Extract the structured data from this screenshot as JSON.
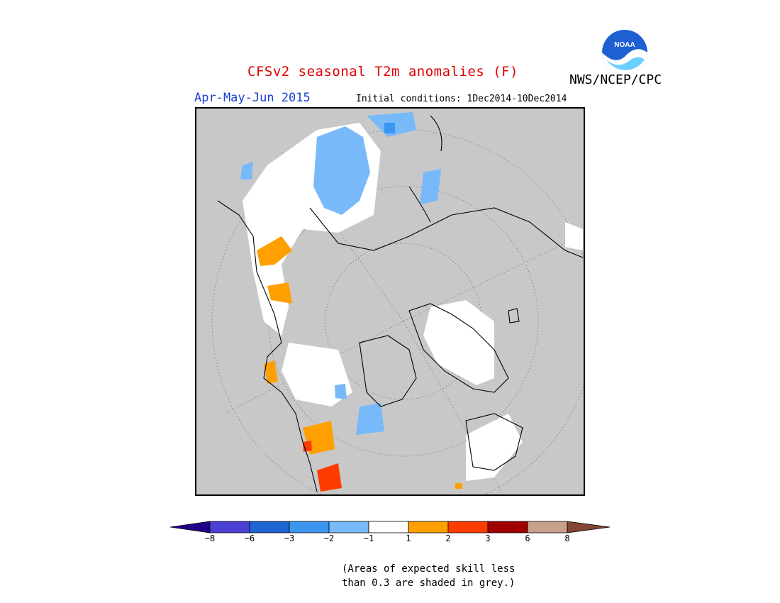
{
  "header": {
    "title": "CFSv2 seasonal T2m anomalies (F)",
    "agency": "NWS/NCEP/CPC",
    "period": "Apr-May-Jun 2015",
    "initial_conditions": "Initial conditions: 1Dec2014-10Dec2014"
  },
  "logo": {
    "text": "NOAA"
  },
  "map": {
    "projection": "polar-stereographic-north",
    "background_color": "#c8c8c8"
  },
  "colorbar": {
    "ticks": [
      "−8",
      "−6",
      "−3",
      "−2",
      "−1",
      "1",
      "2",
      "3",
      "6",
      "8"
    ],
    "colors": [
      "#23008c",
      "#4b3fd4",
      "#1e64d2",
      "#3c96f0",
      "#78b9fa",
      "#ffffff",
      "#ffa000",
      "#ff3c00",
      "#a00000",
      "#c8a08c",
      "#824632"
    ]
  },
  "footnote": {
    "line1": "(Areas of expected skill less",
    "line2": "than 0.3 are shaded in grey.)"
  }
}
